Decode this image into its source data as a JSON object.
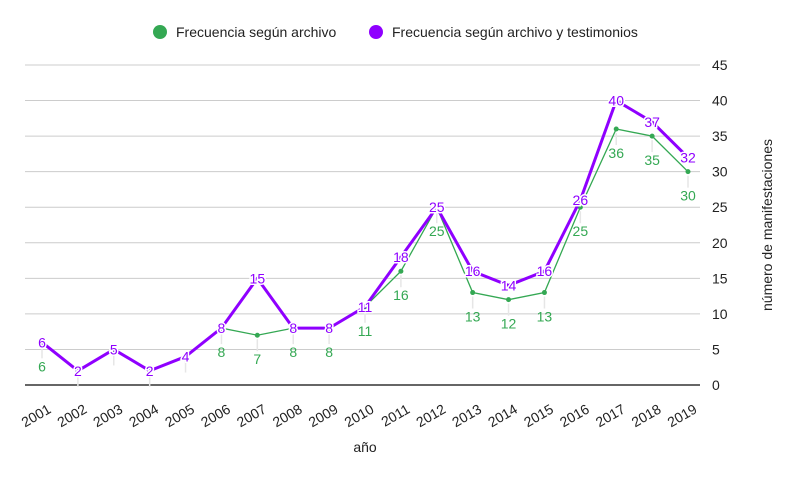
{
  "chart_data": {
    "type": "line",
    "title": "",
    "xlabel": "año",
    "ylabel": "número de manifestaciones",
    "ylim": [
      0,
      45
    ],
    "yticks": [
      0,
      5,
      10,
      15,
      20,
      25,
      30,
      35,
      40,
      45
    ],
    "y_axis_position": "right",
    "grid": true,
    "legend_position": "top",
    "categories": [
      "2001",
      "2002",
      "2003",
      "2004",
      "2005",
      "2006",
      "2007",
      "2008",
      "2009",
      "2010",
      "2011",
      "2012",
      "2013",
      "2014",
      "2015",
      "2016",
      "2017",
      "2018",
      "2019"
    ],
    "series": [
      {
        "name": "Frecuencia según archivo",
        "color": "#34a853",
        "values": [
          6,
          2,
          5,
          2,
          4,
          8,
          7,
          8,
          8,
          11,
          16,
          25,
          13,
          12,
          13,
          25,
          36,
          35,
          30
        ]
      },
      {
        "name": "Frecuencia según archivo y testimonios",
        "color": "#8f00ff",
        "values": [
          6,
          2,
          5,
          2,
          4,
          8,
          15,
          8,
          8,
          11,
          18,
          25,
          16,
          14,
          16,
          26,
          40,
          37,
          32
        ]
      }
    ]
  }
}
